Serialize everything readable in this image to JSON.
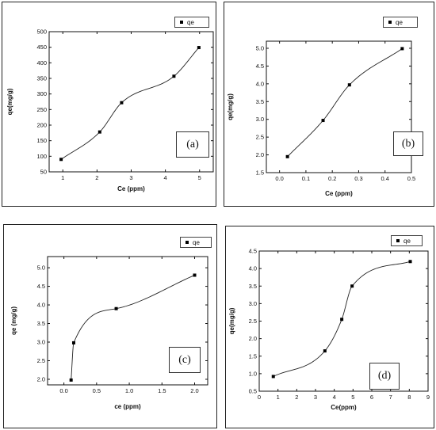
{
  "chart_data": [
    {
      "type": "scatter",
      "panel_label": "(a)",
      "legend": "qe",
      "legend_position": "top-right",
      "xlabel": "Ce (ppm)",
      "ylabel": "qe(mg/g)",
      "xlim": [
        0.6,
        5.4
      ],
      "ylim": [
        50,
        500
      ],
      "xticks": [
        1,
        2,
        3,
        4,
        5
      ],
      "yticks": [
        50,
        100,
        150,
        200,
        250,
        300,
        350,
        400,
        450,
        500
      ],
      "ytick_labels": [
        "50",
        "100",
        "150",
        "200",
        "250",
        "300",
        "350",
        "400",
        "450",
        "500"
      ],
      "series": [
        {
          "name": "qe",
          "x": [
            0.95,
            2.08,
            2.72,
            4.25,
            4.98
          ],
          "y": [
            90,
            178,
            272,
            357,
            449
          ]
        }
      ],
      "fit_curve": true
    },
    {
      "type": "scatter",
      "panel_label": "(b)",
      "legend": "qe",
      "legend_position": "top-right",
      "xlabel": "Ce (ppm)",
      "ylabel": "qe(mg/g)",
      "xlim": [
        -0.05,
        0.5
      ],
      "ylim": [
        1.5,
        5.2
      ],
      "xticks": [
        0.0,
        0.1,
        0.2,
        0.3,
        0.4,
        0.5
      ],
      "xtick_labels": [
        "0.0",
        "0.1",
        "0.2",
        "0.3",
        "0.4",
        "0.5"
      ],
      "yticks": [
        1.5,
        2.0,
        2.5,
        3.0,
        3.5,
        4.0,
        4.5,
        5.0
      ],
      "ytick_labels": [
        "1.5",
        "2.0",
        "2.5",
        "3.0",
        "3.5",
        "4.0",
        "4.5",
        "5.0"
      ],
      "series": [
        {
          "name": "qe",
          "x": [
            0.03,
            0.165,
            0.265,
            0.465
          ],
          "y": [
            1.95,
            2.97,
            3.97,
            4.99
          ]
        }
      ],
      "fit_curve": true
    },
    {
      "type": "scatter",
      "panel_label": "(c)",
      "legend": "qe",
      "legend_position": "top-right",
      "xlabel": "ce (ppm)",
      "ylabel": "qe (mg/g)",
      "xlim": [
        -0.25,
        2.2
      ],
      "ylim": [
        1.85,
        5.3
      ],
      "xticks": [
        0.0,
        0.5,
        1.0,
        1.5,
        2.0
      ],
      "xtick_labels": [
        "0.0",
        "0.5",
        "1.0",
        "1.5",
        "2.0"
      ],
      "yticks": [
        2.0,
        2.5,
        3.0,
        3.5,
        4.0,
        4.5,
        5.0
      ],
      "ytick_labels": [
        "2.0",
        "2.5",
        "3.0",
        "3.5",
        "4.0",
        "4.5",
        "5.0"
      ],
      "series": [
        {
          "name": "qe",
          "x": [
            0.11,
            0.15,
            0.8,
            2.0
          ],
          "y": [
            1.98,
            2.98,
            3.9,
            4.8
          ]
        }
      ],
      "fit_curve": true
    },
    {
      "type": "scatter",
      "panel_label": "(d)",
      "legend": "qe",
      "legend_position": "top-right",
      "xlabel": "Ce(ppm)",
      "ylabel": "qe(mg/g)",
      "xlim": [
        0,
        9
      ],
      "ylim": [
        0.5,
        4.5
      ],
      "xticks": [
        0,
        1,
        2,
        3,
        4,
        5,
        6,
        7,
        8,
        9
      ],
      "yticks": [
        0.5,
        1.0,
        1.5,
        2.0,
        2.5,
        3.0,
        3.5,
        4.0,
        4.5
      ],
      "ytick_labels": [
        "0.5",
        "1.0",
        "1.5",
        "2.0",
        "2.5",
        "3.0",
        "3.5",
        "4.0",
        "4.5"
      ],
      "series": [
        {
          "name": "qe",
          "x": [
            0.75,
            3.5,
            4.4,
            4.95,
            8.05
          ],
          "y": [
            0.92,
            1.65,
            2.55,
            3.5,
            4.2
          ]
        }
      ],
      "fit_curve": true
    }
  ]
}
